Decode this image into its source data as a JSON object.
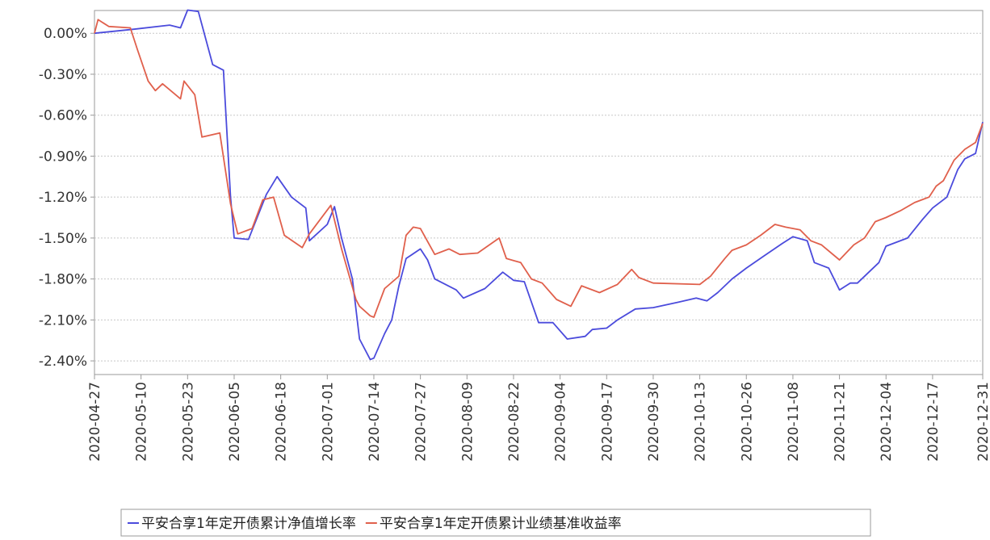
{
  "chart_data": {
    "type": "line",
    "title": "",
    "xlabel": "",
    "ylabel": "",
    "y_unit": "%",
    "ylim": [
      -2.5,
      0.2
    ],
    "y_ticks": [
      0.0,
      -0.3,
      -0.6,
      -0.9,
      -1.2,
      -1.5,
      -1.8,
      -2.1,
      -2.4
    ],
    "y_tick_labels": [
      "0.00%",
      "-0.30%",
      "-0.60%",
      "-0.90%",
      "-1.20%",
      "-1.50%",
      "-1.80%",
      "-2.10%",
      "-2.40%"
    ],
    "xlim": [
      "2020-04-27",
      "2020-12-31"
    ],
    "x_ticks": [
      "2020-04-27",
      "2020-05-10",
      "2020-05-23",
      "2020-06-05",
      "2020-06-18",
      "2020-07-01",
      "2020-07-14",
      "2020-07-27",
      "2020-08-09",
      "2020-08-22",
      "2020-09-04",
      "2020-09-17",
      "2020-09-30",
      "2020-10-13",
      "2020-10-26",
      "2020-11-08",
      "2020-11-21",
      "2020-12-04",
      "2020-12-17",
      "2020-12-31"
    ],
    "grid": true,
    "legend_position": "bottom",
    "series": [
      {
        "name": "平安合享1年定开债累计净值增长率",
        "color": "#4b4bdc",
        "points": [
          [
            "2020-04-27",
            0.0
          ],
          [
            "2020-05-08",
            0.03
          ],
          [
            "2020-05-18",
            0.06
          ],
          [
            "2020-05-21",
            0.04
          ],
          [
            "2020-05-23",
            0.17
          ],
          [
            "2020-05-26",
            0.16
          ],
          [
            "2020-05-30",
            -0.23
          ],
          [
            "2020-06-02",
            -0.27
          ],
          [
            "2020-06-04",
            -1.2
          ],
          [
            "2020-06-05",
            -1.5
          ],
          [
            "2020-06-09",
            -1.51
          ],
          [
            "2020-06-14",
            -1.18
          ],
          [
            "2020-06-17",
            -1.05
          ],
          [
            "2020-06-21",
            -1.2
          ],
          [
            "2020-06-25",
            -1.28
          ],
          [
            "2020-06-26",
            -1.52
          ],
          [
            "2020-07-01",
            -1.4
          ],
          [
            "2020-07-03",
            -1.27
          ],
          [
            "2020-07-05",
            -1.5
          ],
          [
            "2020-07-08",
            -1.8
          ],
          [
            "2020-07-10",
            -2.24
          ],
          [
            "2020-07-13",
            -2.39
          ],
          [
            "2020-07-14",
            -2.38
          ],
          [
            "2020-07-17",
            -2.2
          ],
          [
            "2020-07-19",
            -2.1
          ],
          [
            "2020-07-21",
            -1.85
          ],
          [
            "2020-07-23",
            -1.65
          ],
          [
            "2020-07-27",
            -1.58
          ],
          [
            "2020-07-29",
            -1.66
          ],
          [
            "2020-07-31",
            -1.8
          ],
          [
            "2020-08-06",
            -1.88
          ],
          [
            "2020-08-08",
            -1.94
          ],
          [
            "2020-08-14",
            -1.87
          ],
          [
            "2020-08-19",
            -1.75
          ],
          [
            "2020-08-22",
            -1.81
          ],
          [
            "2020-08-25",
            -1.82
          ],
          [
            "2020-08-29",
            -2.12
          ],
          [
            "2020-09-02",
            -2.12
          ],
          [
            "2020-09-06",
            -2.24
          ],
          [
            "2020-09-11",
            -2.22
          ],
          [
            "2020-09-13",
            -2.17
          ],
          [
            "2020-09-17",
            -2.16
          ],
          [
            "2020-09-20",
            -2.1
          ],
          [
            "2020-09-25",
            -2.02
          ],
          [
            "2020-09-30",
            -2.01
          ],
          [
            "2020-10-07",
            -1.97
          ],
          [
            "2020-10-12",
            -1.94
          ],
          [
            "2020-10-15",
            -1.96
          ],
          [
            "2020-10-18",
            -1.9
          ],
          [
            "2020-10-22",
            -1.8
          ],
          [
            "2020-10-26",
            -1.72
          ],
          [
            "2020-10-31",
            -1.63
          ],
          [
            "2020-11-05",
            -1.54
          ],
          [
            "2020-11-08",
            -1.49
          ],
          [
            "2020-11-12",
            -1.52
          ],
          [
            "2020-11-14",
            -1.68
          ],
          [
            "2020-11-18",
            -1.72
          ],
          [
            "2020-11-21",
            -1.88
          ],
          [
            "2020-11-24",
            -1.83
          ],
          [
            "2020-11-26",
            -1.83
          ],
          [
            "2020-12-02",
            -1.68
          ],
          [
            "2020-12-04",
            -1.56
          ],
          [
            "2020-12-10",
            -1.5
          ],
          [
            "2020-12-14",
            -1.37
          ],
          [
            "2020-12-17",
            -1.28
          ],
          [
            "2020-12-21",
            -1.2
          ],
          [
            "2020-12-24",
            -1.0
          ],
          [
            "2020-12-26",
            -0.92
          ],
          [
            "2020-12-29",
            -0.88
          ],
          [
            "2020-12-31",
            -0.65
          ]
        ]
      },
      {
        "name": "平安合享1年定开债累计业绩基准收益率",
        "color": "#e0604c",
        "points": [
          [
            "2020-04-27",
            0.0
          ],
          [
            "2020-04-28",
            0.1
          ],
          [
            "2020-05-01",
            0.05
          ],
          [
            "2020-05-07",
            0.04
          ],
          [
            "2020-05-09",
            -0.12
          ],
          [
            "2020-05-12",
            -0.35
          ],
          [
            "2020-05-14",
            -0.42
          ],
          [
            "2020-05-16",
            -0.37
          ],
          [
            "2020-05-21",
            -0.48
          ],
          [
            "2020-05-22",
            -0.35
          ],
          [
            "2020-05-25",
            -0.45
          ],
          [
            "2020-05-27",
            -0.76
          ],
          [
            "2020-06-01",
            -0.73
          ],
          [
            "2020-06-04",
            -1.25
          ],
          [
            "2020-06-06",
            -1.47
          ],
          [
            "2020-06-10",
            -1.43
          ],
          [
            "2020-06-13",
            -1.22
          ],
          [
            "2020-06-16",
            -1.2
          ],
          [
            "2020-06-19",
            -1.48
          ],
          [
            "2020-06-24",
            -1.57
          ],
          [
            "2020-06-26",
            -1.47
          ],
          [
            "2020-07-02",
            -1.26
          ],
          [
            "2020-07-05",
            -1.58
          ],
          [
            "2020-07-09",
            -1.95
          ],
          [
            "2020-07-10",
            -2.0
          ],
          [
            "2020-07-13",
            -2.07
          ],
          [
            "2020-07-14",
            -2.08
          ],
          [
            "2020-07-17",
            -1.87
          ],
          [
            "2020-07-21",
            -1.78
          ],
          [
            "2020-07-23",
            -1.48
          ],
          [
            "2020-07-25",
            -1.42
          ],
          [
            "2020-07-27",
            -1.43
          ],
          [
            "2020-07-31",
            -1.62
          ],
          [
            "2020-08-04",
            -1.58
          ],
          [
            "2020-08-07",
            -1.62
          ],
          [
            "2020-08-12",
            -1.61
          ],
          [
            "2020-08-18",
            -1.5
          ],
          [
            "2020-08-20",
            -1.65
          ],
          [
            "2020-08-24",
            -1.68
          ],
          [
            "2020-08-27",
            -1.8
          ],
          [
            "2020-08-30",
            -1.83
          ],
          [
            "2020-09-03",
            -1.95
          ],
          [
            "2020-09-07",
            -2.0
          ],
          [
            "2020-09-10",
            -1.85
          ],
          [
            "2020-09-15",
            -1.9
          ],
          [
            "2020-09-20",
            -1.84
          ],
          [
            "2020-09-24",
            -1.73
          ],
          [
            "2020-09-26",
            -1.79
          ],
          [
            "2020-09-30",
            -1.83
          ],
          [
            "2020-10-13",
            -1.84
          ],
          [
            "2020-10-16",
            -1.78
          ],
          [
            "2020-10-20",
            -1.65
          ],
          [
            "2020-10-22",
            -1.59
          ],
          [
            "2020-10-26",
            -1.55
          ],
          [
            "2020-10-30",
            -1.48
          ],
          [
            "2020-11-03",
            -1.4
          ],
          [
            "2020-11-06",
            -1.42
          ],
          [
            "2020-11-10",
            -1.44
          ],
          [
            "2020-11-13",
            -1.52
          ],
          [
            "2020-11-16",
            -1.55
          ],
          [
            "2020-11-21",
            -1.66
          ],
          [
            "2020-11-25",
            -1.55
          ],
          [
            "2020-11-28",
            -1.5
          ],
          [
            "2020-12-01",
            -1.38
          ],
          [
            "2020-12-04",
            -1.35
          ],
          [
            "2020-12-08",
            -1.3
          ],
          [
            "2020-12-12",
            -1.24
          ],
          [
            "2020-12-16",
            -1.2
          ],
          [
            "2020-12-18",
            -1.12
          ],
          [
            "2020-12-20",
            -1.08
          ],
          [
            "2020-12-23",
            -0.93
          ],
          [
            "2020-12-26",
            -0.85
          ],
          [
            "2020-12-29",
            -0.8
          ],
          [
            "2020-12-31",
            -0.66
          ]
        ]
      }
    ]
  }
}
